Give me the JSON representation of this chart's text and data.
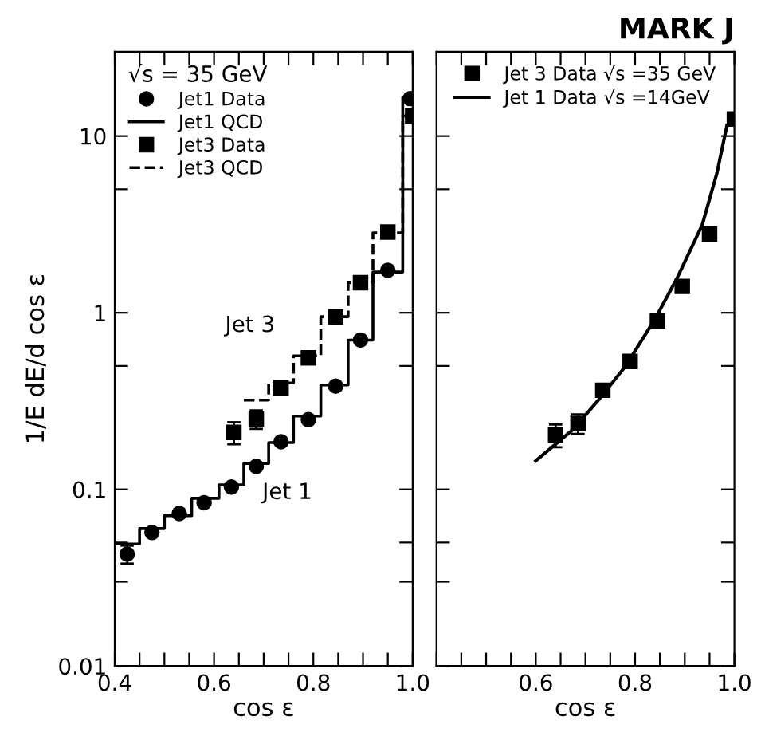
{
  "chart_data": [
    {
      "type": "scatter",
      "xlabel": "cos ε",
      "ylabel": "1/E dE/d cos ε",
      "legend_title": "√s = 35 GeV",
      "legend": "top left",
      "log": "y",
      "xlim": [
        0.4,
        1.0
      ],
      "xticks": [
        0.4,
        {
          "value": 0.45,
          "label": null
        },
        {
          "value": 0.5,
          "label": null
        },
        {
          "value": 0.55,
          "label": null
        },
        0.6,
        {
          "value": 0.65,
          "label": null
        },
        {
          "value": 0.7,
          "label": null
        },
        {
          "value": 0.75,
          "label": null
        },
        0.8,
        {
          "value": 0.85,
          "label": null
        },
        {
          "value": 0.9,
          "label": null
        },
        {
          "value": 0.95,
          "label": null
        },
        {
          "value": 1.0,
          "label": "1.0"
        }
      ],
      "ylim": [
        0.01,
        30
      ],
      "yticks": [
        0.01,
        {
          "value": 0.03,
          "label": null
        },
        {
          "value": 0.05,
          "label": null
        },
        0.1,
        {
          "value": 0.5,
          "label": null
        },
        1,
        {
          "value": 5,
          "label": null
        },
        10
      ],
      "series": [
        {
          "name": "Jet1 Data",
          "marker": "circle",
          "color": "#000000",
          "x": [
            0.425,
            0.475,
            0.53,
            0.58,
            0.635,
            0.685,
            0.735,
            0.79,
            0.845,
            0.895,
            0.95,
            0.995
          ],
          "values": [
            0.043,
            0.057,
            0.073,
            0.084,
            0.103,
            0.135,
            0.186,
            0.248,
            0.384,
            0.7,
            1.74,
            16.3
          ],
          "errors": [
            0.005,
            null,
            null,
            null,
            null,
            null,
            null,
            null,
            null,
            null,
            null,
            null
          ]
        },
        {
          "name": "Jet1 QCD",
          "type": "step",
          "line_style": "solid",
          "color": "#000000",
          "x": [
            0.4,
            0.45,
            0.5,
            0.555,
            0.61,
            0.66,
            0.71,
            0.76,
            0.815,
            0.87,
            0.92,
            0.98,
            1.0
          ],
          "values": [
            0.049,
            0.06,
            0.071,
            0.089,
            0.106,
            0.14,
            0.184,
            0.26,
            0.39,
            0.7,
            1.7,
            16.6,
            16.6
          ]
        },
        {
          "name": "Jet3 Data",
          "marker": "square",
          "color": "#000000",
          "x": [
            0.64,
            0.685,
            0.735,
            0.79,
            0.845,
            0.895,
            0.95,
            1.0
          ],
          "values": [
            0.21,
            0.25,
            0.376,
            0.555,
            0.946,
            1.48,
            2.86,
            13.0
          ],
          "errors": [
            0.03,
            0.03,
            null,
            null,
            null,
            null,
            null,
            null
          ]
        },
        {
          "name": "Jet3 QCD",
          "type": "step",
          "line_style": "dashed",
          "color": "#000000",
          "x": [
            0.66,
            0.71,
            0.76,
            0.815,
            0.87,
            0.92,
            0.98,
            1.0
          ],
          "values": [
            0.32,
            0.4,
            0.57,
            0.95,
            1.48,
            2.83,
            13.0,
            13.0
          ]
        }
      ],
      "annotations": [
        {
          "text": "Jet 3",
          "x": 0.735,
          "y": 0.376
        },
        {
          "text": "Jet 1",
          "x": 0.685,
          "y": 0.135
        }
      ]
    },
    {
      "type": "scatter",
      "title": "MARK J",
      "xlabel": "cos ε",
      "legend": "top",
      "log": "y",
      "tick_labels": "x",
      "xlim": [
        0.4,
        1.0
      ],
      "xticks": [
        {
          "value": 0.4,
          "label": null
        },
        {
          "value": 0.45,
          "label": null
        },
        {
          "value": 0.5,
          "label": null
        },
        {
          "value": 0.55,
          "label": null
        },
        0.6,
        {
          "value": 0.65,
          "label": null
        },
        {
          "value": 0.7,
          "label": null
        },
        {
          "value": 0.75,
          "label": null
        },
        0.8,
        {
          "value": 0.85,
          "label": null
        },
        {
          "value": 0.9,
          "label": null
        },
        {
          "value": 0.95,
          "label": null
        },
        {
          "value": 1.0,
          "label": "1.0"
        }
      ],
      "ylim": [
        0.01,
        30
      ],
      "yticks": [
        0.01,
        {
          "value": 0.03,
          "label": null
        },
        {
          "value": 0.05,
          "label": null
        },
        0.1,
        {
          "value": 0.5,
          "label": null
        },
        1,
        {
          "value": 5,
          "label": null
        },
        10
      ],
      "series": [
        {
          "name": "Jet 3 Data √s =35 GeV",
          "marker": "square",
          "color": "#000000",
          "x": [
            0.64,
            0.685,
            0.735,
            0.79,
            0.845,
            0.895,
            0.95,
            1.0
          ],
          "values": [
            0.203,
            0.236,
            0.364,
            0.53,
            0.9,
            1.41,
            2.78,
            12.5
          ],
          "errors": [
            0.03,
            0.03,
            null,
            null,
            null,
            null,
            null,
            null
          ]
        },
        {
          "name": "Jet 1 Data √s =14GeV",
          "type": "line",
          "line_style": "solid",
          "color": "#000000",
          "x": [
            0.6,
            0.675,
            0.73,
            0.78,
            0.84,
            0.885,
            0.935,
            0.965,
            0.985
          ],
          "values": [
            0.145,
            0.218,
            0.33,
            0.495,
            0.92,
            1.58,
            3.13,
            6.2,
            11.5
          ]
        }
      ]
    }
  ]
}
